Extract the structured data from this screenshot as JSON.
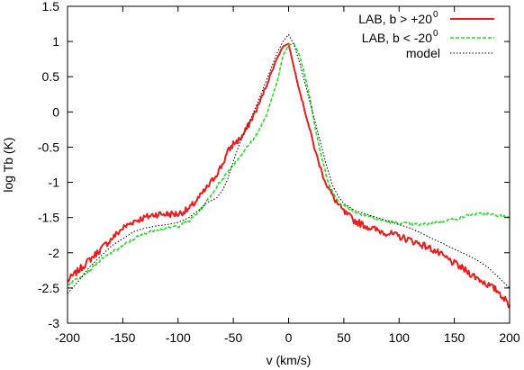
{
  "chart_data": {
    "type": "line",
    "xlabel": "v (km/s)",
    "ylabel": "log Tb (K)",
    "xlim": [
      -200,
      200
    ],
    "ylim": [
      -3,
      1.5
    ],
    "xticks": [
      -200,
      -150,
      -100,
      -50,
      0,
      50,
      100,
      150,
      200
    ],
    "yticks": [
      -3,
      -2.5,
      -2,
      -1.5,
      -1,
      -0.5,
      0,
      0.5,
      1,
      1.5
    ],
    "xtick_labels": [
      "-200",
      "-150",
      "-100",
      "-50",
      "0",
      "50",
      "100",
      "150",
      "200"
    ],
    "ytick_labels": [
      "-3",
      "-2.5",
      "-2",
      "-1.5",
      "-1",
      "-0.5",
      "0",
      "0.5",
      "1",
      "1.5"
    ],
    "legend_position": "top-right",
    "grid": false,
    "series": [
      {
        "name_main": "LAB, b > +20",
        "name_sup": "0",
        "color": "#ee1c1c",
        "style": "solid",
        "noise": 0.05,
        "x": [
          -200,
          -190,
          -180,
          -170,
          -160,
          -150,
          -140,
          -130,
          -120,
          -110,
          -100,
          -90,
          -80,
          -70,
          -60,
          -55,
          -50,
          -45,
          -40,
          -35,
          -30,
          -25,
          -20,
          -15,
          -10,
          -5,
          0,
          5,
          10,
          15,
          20,
          25,
          30,
          35,
          40,
          45,
          50,
          60,
          70,
          80,
          90,
          100,
          110,
          120,
          130,
          140,
          150,
          160,
          170,
          180,
          190,
          200
        ],
        "y": [
          -2.4,
          -2.25,
          -2.1,
          -1.95,
          -1.8,
          -1.65,
          -1.55,
          -1.5,
          -1.45,
          -1.45,
          -1.45,
          -1.38,
          -1.2,
          -1.0,
          -0.75,
          -0.57,
          -0.45,
          -0.4,
          -0.3,
          -0.15,
          0.0,
          0.18,
          0.38,
          0.58,
          0.78,
          0.93,
          0.97,
          0.62,
          0.3,
          0.0,
          -0.3,
          -0.6,
          -0.85,
          -1.05,
          -1.2,
          -1.32,
          -1.42,
          -1.55,
          -1.62,
          -1.68,
          -1.72,
          -1.77,
          -1.82,
          -1.88,
          -1.95,
          -2.05,
          -2.15,
          -2.25,
          -2.35,
          -2.45,
          -2.55,
          -2.75
        ]
      },
      {
        "name_main": "LAB, b < -20",
        "name_sup": "0",
        "color": "#22dd22",
        "style": "dashed",
        "noise": 0.02,
        "x": [
          -200,
          -190,
          -180,
          -170,
          -160,
          -150,
          -140,
          -130,
          -120,
          -110,
          -100,
          -90,
          -80,
          -70,
          -60,
          -50,
          -40,
          -30,
          -20,
          -10,
          -5,
          0,
          5,
          10,
          15,
          20,
          25,
          30,
          35,
          40,
          45,
          50,
          60,
          70,
          80,
          90,
          100,
          110,
          120,
          130,
          140,
          150,
          160,
          170,
          180,
          190,
          200
        ],
        "y": [
          -2.45,
          -2.35,
          -2.25,
          -2.1,
          -2.0,
          -1.9,
          -1.8,
          -1.72,
          -1.67,
          -1.65,
          -1.62,
          -1.55,
          -1.4,
          -1.18,
          -0.95,
          -0.75,
          -0.55,
          -0.35,
          -0.05,
          0.45,
          0.8,
          0.95,
          0.97,
          0.8,
          0.5,
          0.15,
          -0.3,
          -0.65,
          -0.95,
          -1.15,
          -1.27,
          -1.33,
          -1.42,
          -1.47,
          -1.52,
          -1.56,
          -1.58,
          -1.59,
          -1.6,
          -1.58,
          -1.55,
          -1.52,
          -1.48,
          -1.45,
          -1.45,
          -1.47,
          -1.5
        ]
      },
      {
        "name_main": "model",
        "name_sup": "",
        "color": "#000000",
        "style": "dotted",
        "noise": 0,
        "x": [
          -200,
          -190,
          -180,
          -170,
          -160,
          -150,
          -140,
          -130,
          -120,
          -110,
          -100,
          -90,
          -80,
          -75,
          -70,
          -65,
          -60,
          -55,
          -50,
          -45,
          -40,
          -35,
          -30,
          -25,
          -20,
          -15,
          -10,
          -5,
          0,
          5,
          10,
          15,
          20,
          25,
          30,
          35,
          40,
          45,
          50,
          60,
          70,
          80,
          90,
          100,
          110,
          120,
          130,
          140,
          150,
          160,
          170,
          180,
          190,
          200
        ],
        "y": [
          -2.58,
          -2.4,
          -2.2,
          -2.05,
          -1.9,
          -1.8,
          -1.7,
          -1.65,
          -1.62,
          -1.6,
          -1.57,
          -1.5,
          -1.38,
          -1.3,
          -1.26,
          -1.22,
          -1.12,
          -0.95,
          -0.7,
          -0.48,
          -0.3,
          -0.12,
          0.05,
          0.25,
          0.45,
          0.65,
          0.85,
          1.0,
          1.1,
          0.95,
          0.7,
          0.4,
          0.1,
          -0.2,
          -0.5,
          -0.8,
          -1.05,
          -1.2,
          -1.3,
          -1.4,
          -1.45,
          -1.5,
          -1.55,
          -1.6,
          -1.65,
          -1.72,
          -1.8,
          -1.87,
          -1.95,
          -2.02,
          -2.1,
          -2.2,
          -2.35,
          -2.5
        ]
      }
    ]
  }
}
